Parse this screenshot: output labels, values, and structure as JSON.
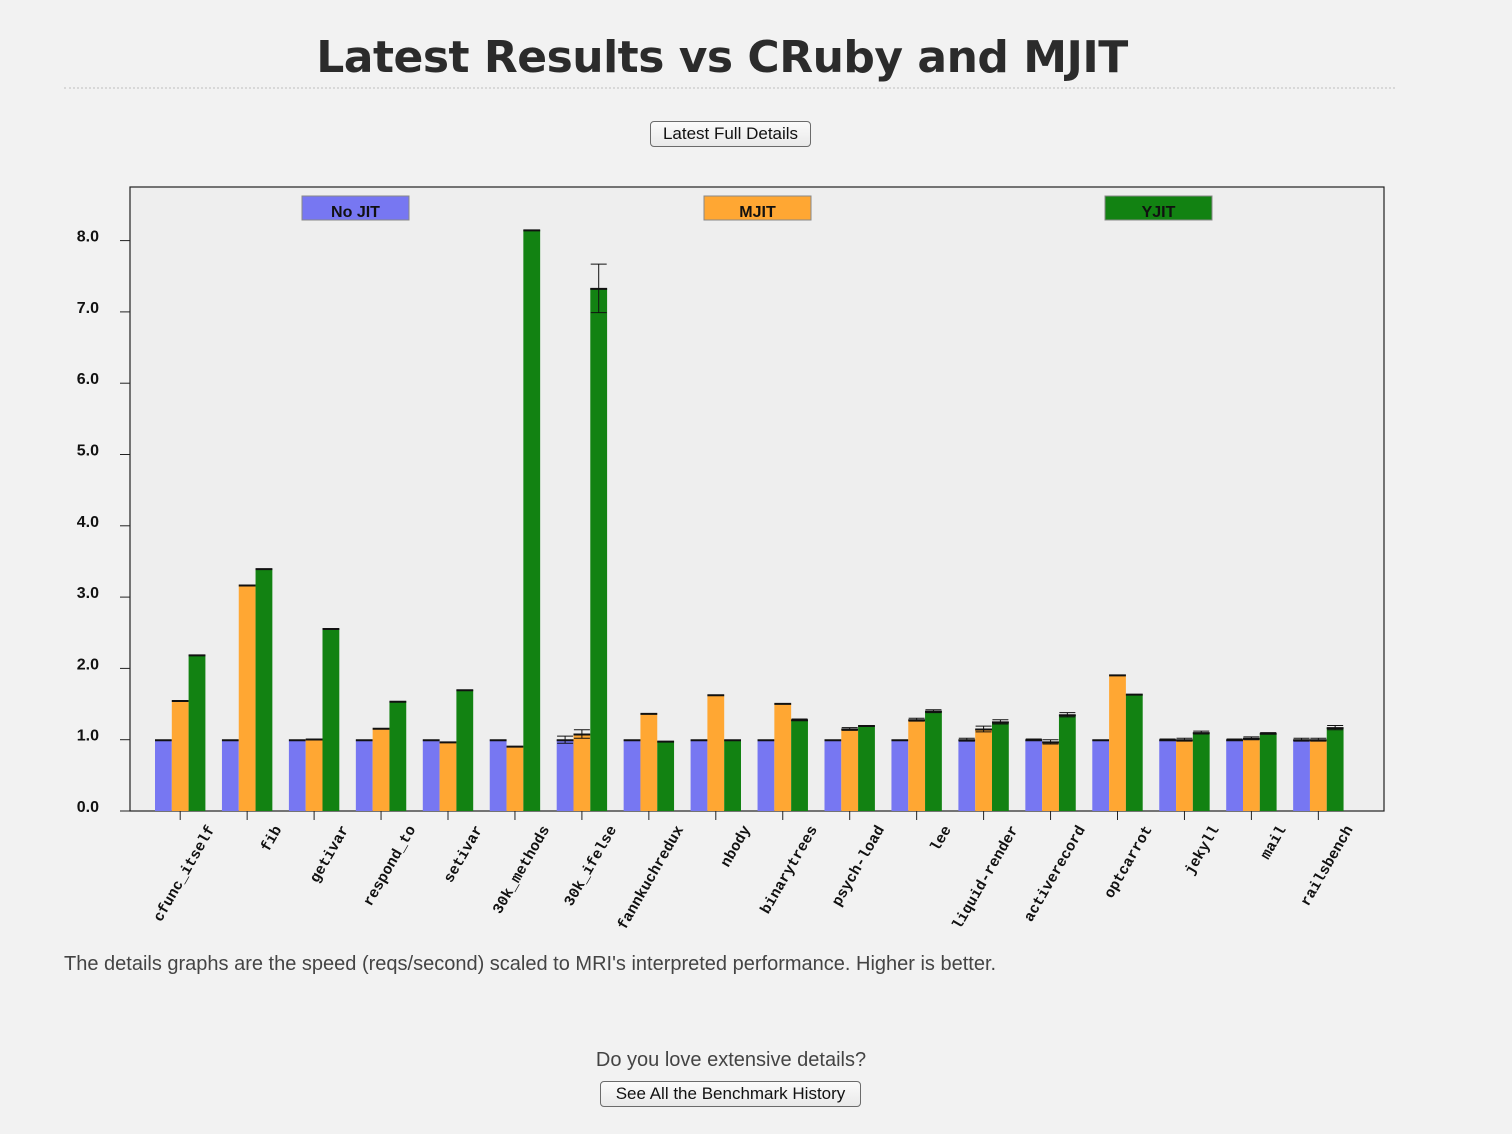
{
  "page": {
    "title": "Latest Results vs CRuby and MJIT",
    "details_button": "Latest Full Details",
    "footnote": "The details graphs are the speed (reqs/second) scaled to MRI's interpreted performance. Higher is better.",
    "promo_text": "Do you love extensive details?",
    "history_button": "See All the Benchmark History"
  },
  "colors": {
    "no_jit": "#7777f2",
    "mjit": "#ffa733",
    "yjit": "#128212",
    "plot_bg": "#eeeeee",
    "page_bg": "#f2f2f2"
  },
  "chart_data": {
    "type": "bar",
    "title": "",
    "xlabel": "",
    "ylabel": "",
    "ylim": [
      0,
      8.8
    ],
    "yticks": [
      "0.0",
      "1.0",
      "2.0",
      "3.0",
      "4.0",
      "5.0",
      "6.0",
      "7.0",
      "8.0"
    ],
    "grid": false,
    "legend_position": "top",
    "categories": [
      "cfunc_itself",
      "fib",
      "getivar",
      "respond_to",
      "setivar",
      "30k_methods",
      "30k_ifelse",
      "fannkuchredux",
      "nbody",
      "binarytrees",
      "psych-load",
      "lee",
      "liquid-render",
      "activerecord",
      "optcarrot",
      "jekyll",
      "mail",
      "railsbench"
    ],
    "series": [
      {
        "name": "No JIT",
        "color": "#7777f2",
        "values": [
          1.0,
          1.0,
          1.0,
          1.0,
          1.0,
          1.0,
          1.0,
          1.0,
          1.0,
          1.0,
          1.0,
          1.0,
          1.0,
          1.0,
          1.0,
          1.0,
          1.0,
          1.0
        ],
        "errors": [
          0.0,
          0.0,
          0.0,
          0.0,
          0.0,
          0.0,
          0.05,
          0.0,
          0.0,
          0.0,
          0.0,
          0.0,
          0.02,
          0.01,
          0.0,
          0.01,
          0.01,
          0.02
        ]
      },
      {
        "name": "MJIT",
        "color": "#ffa733",
        "values": [
          1.55,
          3.17,
          1.01,
          1.16,
          0.97,
          0.91,
          1.08,
          1.37,
          1.63,
          1.51,
          1.15,
          1.28,
          1.15,
          0.97,
          1.91,
          1.0,
          1.02,
          1.0
        ],
        "errors": [
          0.0,
          0.0,
          0.0,
          0.0,
          0.0,
          0.0,
          0.06,
          0.0,
          0.0,
          0.0,
          0.02,
          0.02,
          0.04,
          0.03,
          0.0,
          0.02,
          0.02,
          0.02
        ]
      },
      {
        "name": "YJIT",
        "color": "#128212",
        "values": [
          2.19,
          3.4,
          2.56,
          1.54,
          1.7,
          8.15,
          7.33,
          0.98,
          1.0,
          1.28,
          1.2,
          1.4,
          1.25,
          1.35,
          1.64,
          1.1,
          1.09,
          1.17
        ],
        "errors": [
          0.0,
          0.0,
          0.0,
          0.0,
          0.0,
          0.0,
          0.34,
          0.0,
          0.0,
          0.01,
          0.0,
          0.02,
          0.03,
          0.03,
          0.0,
          0.02,
          0.01,
          0.03
        ]
      }
    ]
  }
}
